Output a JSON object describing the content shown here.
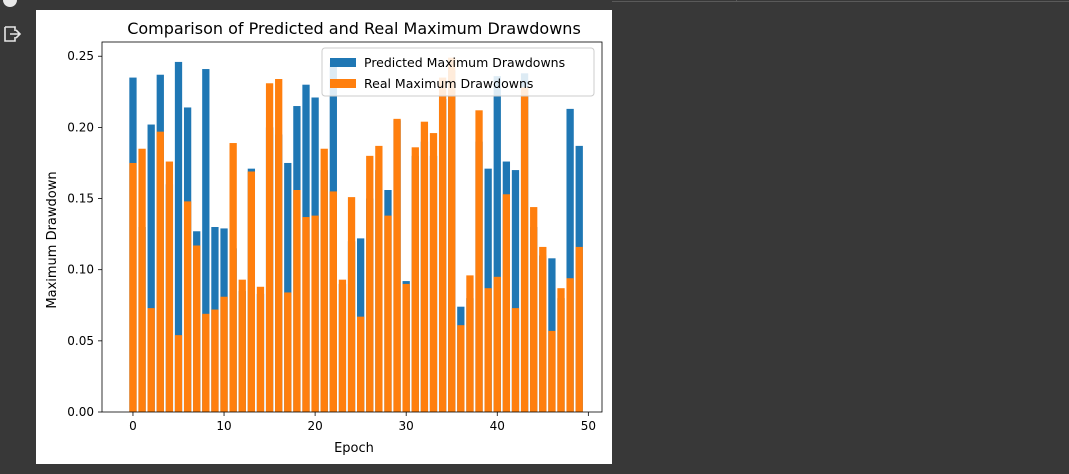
{
  "toolbar": {
    "output_icon": "exit-to-app-icon"
  },
  "chart_data": {
    "type": "bar",
    "title": "Comparison of Predicted and Real Maximum Drawdowns",
    "xlabel": "Epoch",
    "ylabel": "Maximum Drawdown",
    "xlim": [
      -3.4,
      51.5
    ],
    "ylim": [
      0,
      0.26
    ],
    "xticks": [
      0,
      10,
      20,
      30,
      40,
      50
    ],
    "xtick_labels": [
      "0",
      "10",
      "20",
      "30",
      "40",
      "50"
    ],
    "yticks": [
      0,
      0.05,
      0.1,
      0.15,
      0.2,
      0.25
    ],
    "ytick_labels": [
      "0.00",
      "0.05",
      "0.10",
      "0.15",
      "0.20",
      "0.25"
    ],
    "legend_position": "top-right",
    "grid": false,
    "x": [
      0,
      1,
      2,
      3,
      4,
      5,
      6,
      7,
      8,
      9,
      10,
      11,
      12,
      13,
      14,
      15,
      16,
      17,
      18,
      19,
      20,
      21,
      22,
      23,
      24,
      25,
      26,
      27,
      28,
      29,
      30,
      31,
      32,
      33,
      34,
      35,
      36,
      37,
      38,
      39,
      40,
      41,
      42,
      43,
      44,
      45,
      46,
      47,
      48,
      49
    ],
    "series": [
      {
        "name": "Predicted Maximum Drawdowns",
        "color": "#1f77b4",
        "values": [
          0.235,
          0.13,
          0.202,
          0.237,
          0.16,
          0.246,
          0.214,
          0.127,
          0.241,
          0.13,
          0.129,
          0.115,
          0.085,
          0.171,
          0.083,
          0.2,
          0.195,
          0.175,
          0.215,
          0.23,
          0.221,
          0.17,
          0.245,
          0.09,
          0.12,
          0.122,
          0.15,
          0.17,
          0.156,
          0.205,
          0.092,
          0.18,
          0.19,
          0.18,
          0.22,
          0.24,
          0.074,
          0.08,
          0.19,
          0.171,
          0.236,
          0.176,
          0.17,
          0.238,
          0.13,
          0.11,
          0.108,
          0.08,
          0.213,
          0.187
        ]
      },
      {
        "name": "Real Maximum Drawdowns",
        "color": "#ff7f0e",
        "values": [
          0.175,
          0.185,
          0.073,
          0.197,
          0.176,
          0.054,
          0.148,
          0.117,
          0.069,
          0.072,
          0.081,
          0.189,
          0.093,
          0.169,
          0.088,
          0.231,
          0.234,
          0.084,
          0.156,
          0.137,
          0.138,
          0.185,
          0.155,
          0.093,
          0.151,
          0.067,
          0.18,
          0.187,
          0.138,
          0.206,
          0.09,
          0.186,
          0.204,
          0.196,
          0.235,
          0.249,
          0.061,
          0.096,
          0.212,
          0.087,
          0.095,
          0.153,
          0.073,
          0.228,
          0.144,
          0.116,
          0.057,
          0.087,
          0.094,
          0.116
        ]
      }
    ]
  }
}
